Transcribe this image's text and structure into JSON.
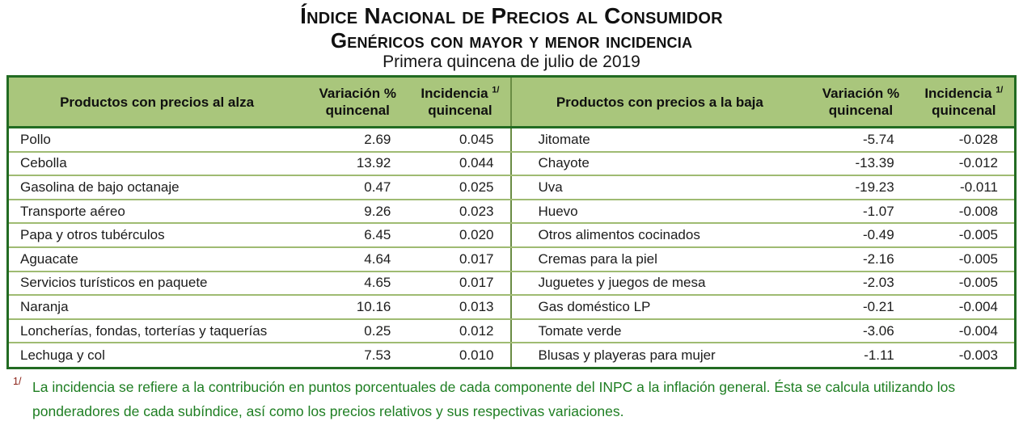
{
  "title": {
    "line1": "Índice Nacional de Precios al Consumidor",
    "line2": "Genéricos con mayor y menor incidencia",
    "subtitle": "Primera quincena de julio de 2019"
  },
  "table": {
    "alza": {
      "product_header": "Productos con precios al alza",
      "variation_header_line1": "Variación %",
      "variation_header_line2": "quincenal",
      "incidence_header_line1": "Incidencia",
      "incidence_header_sup": "1/",
      "incidence_header_line2": "quincenal",
      "rows": [
        {
          "product": "Pollo",
          "variation": "2.69",
          "incidence": "0.045"
        },
        {
          "product": "Cebolla",
          "variation": "13.92",
          "incidence": "0.044"
        },
        {
          "product": "Gasolina de bajo octanaje",
          "variation": "0.47",
          "incidence": "0.025"
        },
        {
          "product": "Transporte aéreo",
          "variation": "9.26",
          "incidence": "0.023"
        },
        {
          "product": "Papa y otros tubérculos",
          "variation": "6.45",
          "incidence": "0.020"
        },
        {
          "product": "Aguacate",
          "variation": "4.64",
          "incidence": "0.017"
        },
        {
          "product": "Servicios turísticos en paquete",
          "variation": "4.65",
          "incidence": "0.017"
        },
        {
          "product": "Naranja",
          "variation": "10.16",
          "incidence": "0.013"
        },
        {
          "product": "Loncherías, fondas, torterías y taquerías",
          "variation": "0.25",
          "incidence": "0.012"
        },
        {
          "product": "Lechuga y col",
          "variation": "7.53",
          "incidence": "0.010"
        }
      ]
    },
    "baja": {
      "product_header": "Productos con precios a la baja",
      "variation_header_line1": "Variación %",
      "variation_header_line2": "quincenal",
      "incidence_header_line1": "Incidencia",
      "incidence_header_sup": "1/",
      "incidence_header_line2": "quincenal",
      "rows": [
        {
          "product": "Jitomate",
          "variation": "-5.74",
          "incidence": "-0.028"
        },
        {
          "product": "Chayote",
          "variation": "-13.39",
          "incidence": "-0.012"
        },
        {
          "product": "Uva",
          "variation": "-19.23",
          "incidence": "-0.011"
        },
        {
          "product": "Huevo",
          "variation": "-1.07",
          "incidence": "-0.008"
        },
        {
          "product": "Otros alimentos cocinados",
          "variation": "-0.49",
          "incidence": "-0.005"
        },
        {
          "product": "Cremas para la piel",
          "variation": "-2.16",
          "incidence": "-0.005"
        },
        {
          "product": "Juguetes y juegos de mesa",
          "variation": "-2.03",
          "incidence": "-0.005"
        },
        {
          "product": "Gas doméstico LP",
          "variation": "-0.21",
          "incidence": "-0.004"
        },
        {
          "product": "Tomate verde",
          "variation": "-3.06",
          "incidence": "-0.004"
        },
        {
          "product": "Blusas y playeras para mujer",
          "variation": "-1.11",
          "incidence": "-0.003"
        }
      ]
    }
  },
  "footnote": {
    "marker": "1/",
    "text": "La incidencia se refiere a la contribución en puntos porcentuales de cada componente del INPC a la inflación general. Ésta se calcula utilizando los ponderadores de cada subíndice, así como los precios relativos y sus respectivas variaciones."
  },
  "colors": {
    "header_bg": "#a9c67c",
    "border_dark": "#226b22",
    "row_line": "#9fbb72",
    "divider": "#6a8c44",
    "footnote_green": "#1e7e22",
    "marker_red": "#8a2015",
    "text_dark": "#1f1f1f"
  }
}
